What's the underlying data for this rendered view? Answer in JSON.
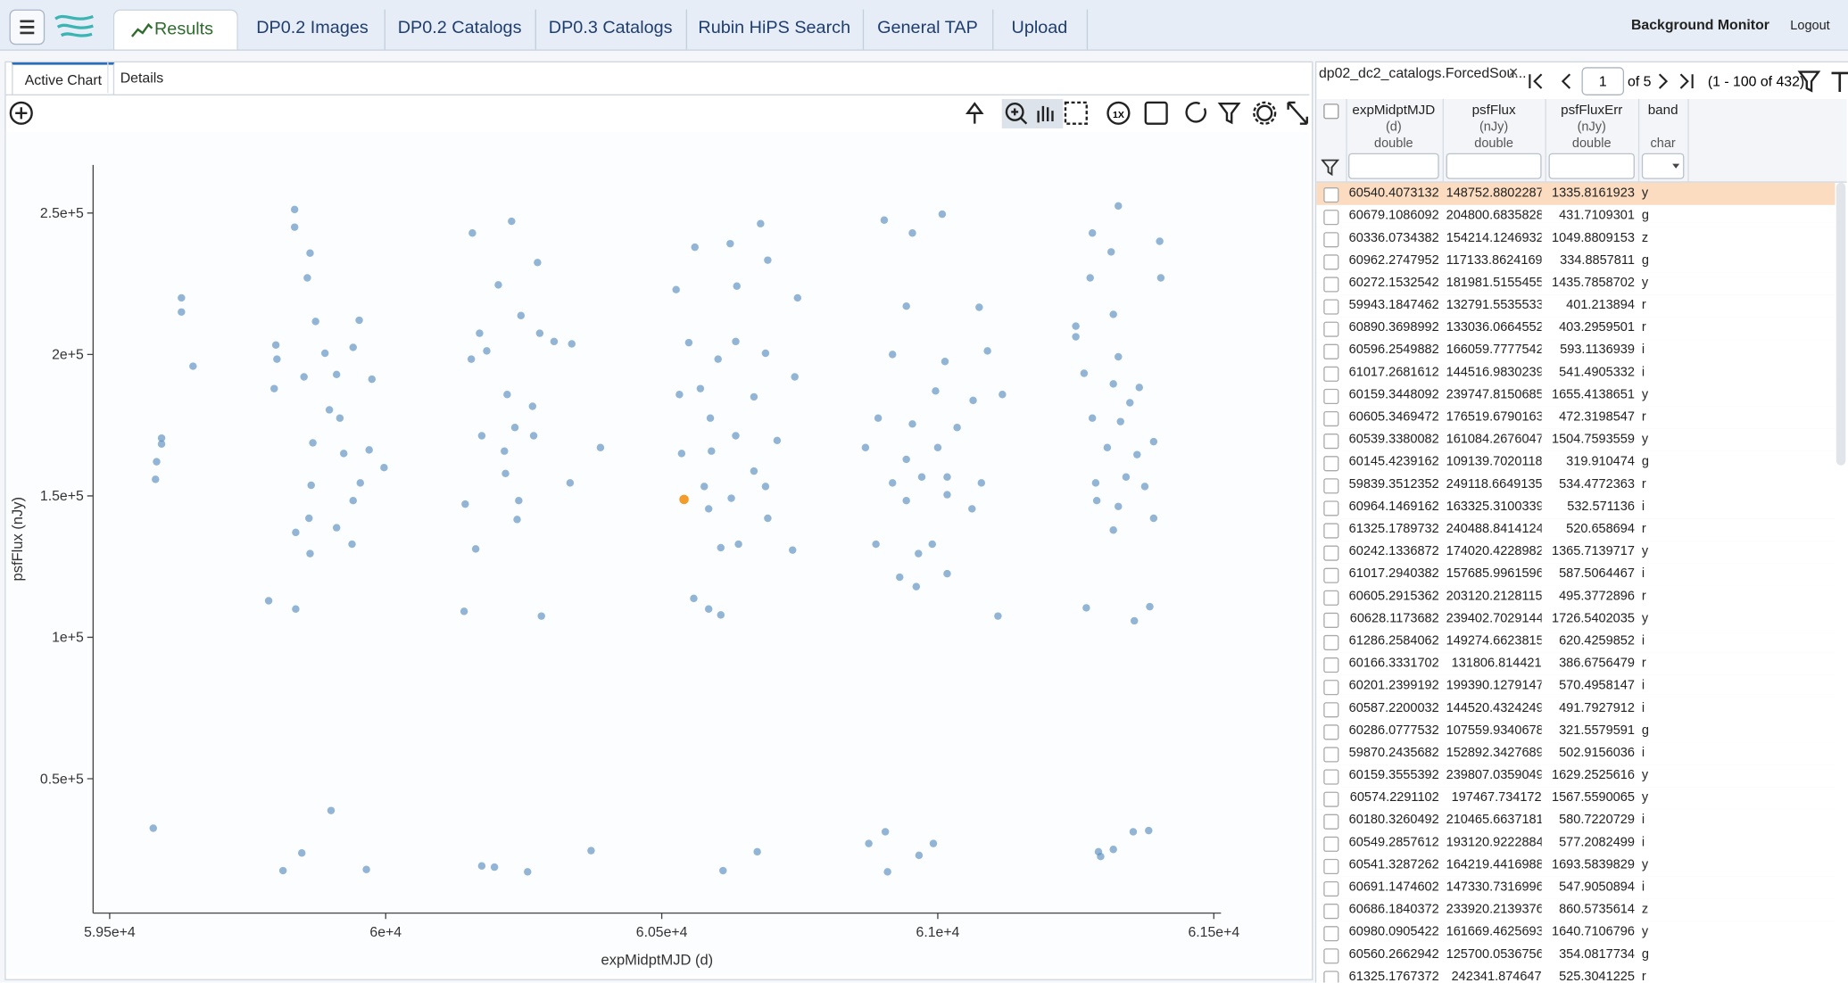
{
  "nav": {
    "tabs": [
      "Results",
      "DP0.2 Images",
      "DP0.2 Catalogs",
      "DP0.3 Catalogs",
      "Rubin HiPS Search",
      "General TAP",
      "Upload"
    ],
    "right": [
      "Background Monitor",
      "Logout"
    ]
  },
  "chart_panel": {
    "tabs": [
      "Active Chart",
      "Details"
    ],
    "zoom_reset": "1X"
  },
  "chart_data": {
    "type": "scatter",
    "x_label": "expMidptMJD (d)",
    "y_label": "psfFlux (nJy)",
    "color": "#5b8fbf",
    "grid": false,
    "xlim": [
      59470,
      61513
    ],
    "ylim": [
      2500,
      267000
    ],
    "xticks": [
      {
        "value": 59500,
        "label": "5.95e+4"
      },
      {
        "value": 60000,
        "label": "6e+4"
      },
      {
        "value": 60500,
        "label": "6.05e+4"
      },
      {
        "value": 61000,
        "label": "6.1e+4"
      },
      {
        "value": 61500,
        "label": "6.15e+4"
      }
    ],
    "yticks": [
      {
        "value": 50000,
        "label": "0.5e+5"
      },
      {
        "value": 100000,
        "label": "1e+5"
      },
      {
        "value": 150000,
        "label": "1.5e+5"
      },
      {
        "value": 200000,
        "label": "2e+5"
      },
      {
        "value": 250000,
        "label": "2.5e+5"
      }
    ],
    "x": [
      59583,
      59585,
      59594,
      59594,
      59630,
      59630,
      59651,
      59579,
      59835,
      59835,
      59863,
      59858,
      59801,
      59803,
      59798,
      59852,
      59873,
      59890,
      59911,
      59898,
      59868,
      59917,
      59924,
      59952,
      59941,
      59975,
      59970,
      59997,
      59954,
      59865,
      59861,
      59837,
      59863,
      59911,
      59939,
      59941,
      59788,
      59837,
      59901,
      59848,
      59814,
      59965,
      60157,
      60228,
      60204,
      60170,
      60183,
      60155,
      60245,
      60275,
      60279,
      60305,
      60337,
      60220,
      60266,
      60234,
      60174,
      60215,
      60268,
      60217,
      60241,
      60334,
      60389,
      60144,
      60238,
      60163,
      60142,
      60282,
      60197,
      60257,
      60174,
      60372,
      60560,
      60624,
      60679,
      60526,
      60636,
      60692,
      60746,
      60549,
      60602,
      60634,
      60688,
      60570,
      60667,
      60741,
      60532,
      60588,
      60634,
      60709,
      60536,
      60590,
      60667,
      60577,
      60626,
      60688,
      60585,
      60692,
      60607,
      60639,
      60737,
      60558,
      60585,
      60607,
      60611,
      60673,
      60903,
      61008,
      60954,
      60943,
      61075,
      60918,
      61013,
      61090,
      60996,
      61064,
      61117,
      60892,
      60954,
      61035,
      60869,
      60943,
      61000,
      60918,
      60971,
      61017,
      61079,
      60943,
      61017,
      61062,
      60888,
      60965,
      60990,
      60931,
      61017,
      60961,
      61109,
      60875,
      60905,
      60992,
      60966,
      60909,
      61280,
      61327,
      61314,
      61276,
      61250,
      61250,
      61318,
      61327,
      61402,
      61404,
      61265,
      61365,
      61318,
      61348,
      61280,
      61331,
      61391,
      61307,
      61361,
      61286,
      61341,
      61375,
      61327,
      61288,
      61391,
      61318,
      61269,
      61356,
      61384,
      61291,
      61318,
      61354,
      61382,
      61295
    ],
    "values": [
      155833,
      162083,
      168333,
      170417,
      220000,
      215000,
      195833,
      32500,
      251250,
      245000,
      235833,
      227083,
      203333,
      198333,
      187917,
      192083,
      211667,
      200417,
      192917,
      180417,
      168750,
      177500,
      165000,
      212083,
      202500,
      191250,
      166250,
      160000,
      154583,
      153750,
      142083,
      137083,
      129583,
      138750,
      132917,
      148333,
      112917,
      110000,
      38750,
      23750,
      17500,
      17917,
      242917,
      247083,
      224583,
      207500,
      201250,
      198333,
      213750,
      232500,
      207500,
      204583,
      203750,
      185833,
      181667,
      174167,
      171250,
      165833,
      171250,
      157917,
      148333,
      154583,
      167083,
      147083,
      141667,
      131250,
      109167,
      107500,
      18750,
      17083,
      19167,
      24583,
      237917,
      239167,
      246250,
      222917,
      224167,
      233333,
      220000,
      204167,
      198333,
      204583,
      200417,
      187917,
      185000,
      192083,
      185833,
      177500,
      171250,
      169583,
      165000,
      165833,
      158750,
      153333,
      149167,
      153333,
      145417,
      142083,
      131667,
      132917,
      130833,
      113750,
      110000,
      107917,
      17500,
      24167,
      247500,
      249583,
      242917,
      217083,
      216667,
      200000,
      197500,
      201250,
      187083,
      183750,
      185833,
      177500,
      175417,
      174167,
      167083,
      162917,
      167083,
      154583,
      156667,
      156667,
      154583,
      148333,
      150417,
      145417,
      132917,
      129583,
      132917,
      121250,
      122500,
      117917,
      107500,
      27083,
      31250,
      27083,
      22917,
      17083,
      242917,
      252500,
      236250,
      227083,
      210000,
      206250,
      214167,
      199167,
      240000,
      227083,
      193333,
      188333,
      189583,
      182917,
      177500,
      176250,
      169167,
      167083,
      164583,
      154583,
      156667,
      153333,
      146250,
      148333,
      142083,
      137917,
      110417,
      105833,
      110833,
      24167,
      25000,
      31250,
      31667,
      22500
    ],
    "selected": {
      "x": 60540.4073132,
      "y": 148752.8802287,
      "color": "#f39c29"
    }
  },
  "table": {
    "title": "dp02_dc2_catalogs.ForcedSou...",
    "close": "×",
    "page": "1",
    "page_of": "of 5",
    "range": "(1 - 100 of 432)",
    "columns": [
      {
        "name": "expMidptMJD",
        "unit": "(d)",
        "type": "double"
      },
      {
        "name": "psfFlux",
        "unit": "(nJy)",
        "type": "double"
      },
      {
        "name": "psfFluxErr",
        "unit": "(nJy)",
        "type": "double"
      },
      {
        "name": "band",
        "type": "char"
      }
    ],
    "rows": [
      [
        "60540.4073132",
        "148752.8802287",
        "1335.8161923",
        "y"
      ],
      [
        "60679.1086092",
        "204800.6835828",
        "431.7109301",
        "g"
      ],
      [
        "60336.0734382",
        "154214.1246932",
        "1049.8809153",
        "z"
      ],
      [
        "60962.2747952",
        "117133.8624169",
        "334.8857811",
        "g"
      ],
      [
        "60272.1532542",
        "181981.5155455",
        "1435.7858702",
        "y"
      ],
      [
        "59943.1847462",
        "132791.5535533",
        "401.213894",
        "r"
      ],
      [
        "60890.3698992",
        "133036.0664552",
        "403.2959501",
        "r"
      ],
      [
        "60596.2549882",
        "166059.7777542",
        "593.1136939",
        "i"
      ],
      [
        "61017.2681612",
        "144516.9830239",
        "541.4905332",
        "i"
      ],
      [
        "60159.3448092",
        "239747.8150685",
        "1655.4138651",
        "y"
      ],
      [
        "60605.3469472",
        "176519.6790163",
        "472.3198547",
        "r"
      ],
      [
        "60539.3380082",
        "161084.2676047",
        "1504.7593559",
        "y"
      ],
      [
        "60145.4239162",
        "109139.7020118",
        "319.910474",
        "g"
      ],
      [
        "59839.3512352",
        "249118.6649135",
        "534.4772363",
        "r"
      ],
      [
        "60964.1469162",
        "163325.3100339",
        "532.571136",
        "i"
      ],
      [
        "61325.1789732",
        "240488.8414124",
        "520.658694",
        "r"
      ],
      [
        "60242.1336872",
        "174020.4228982",
        "1365.7139717",
        "y"
      ],
      [
        "61017.2940382",
        "157685.9961596",
        "587.5064467",
        "i"
      ],
      [
        "60605.2915362",
        "203120.2128115",
        "495.3772896",
        "r"
      ],
      [
        "60628.1173682",
        "239402.7029144",
        "1726.5402035",
        "y"
      ],
      [
        "61286.2584062",
        "149274.6623815",
        "620.4259852",
        "i"
      ],
      [
        "60166.3331702",
        "131806.814421",
        "386.6756479",
        "r"
      ],
      [
        "60201.2399192",
        "199390.1279147",
        "570.4958147",
        "i"
      ],
      [
        "60587.2200032",
        "144520.4324249",
        "491.7927912",
        "i"
      ],
      [
        "60286.0777532",
        "107559.9340678",
        "321.5579591",
        "g"
      ],
      [
        "59870.2435682",
        "152892.3427689",
        "502.9156036",
        "i"
      ],
      [
        "60159.3555392",
        "239807.0359049",
        "1629.2525616",
        "y"
      ],
      [
        "60574.2291102",
        "197467.734172",
        "1567.5590065",
        "y"
      ],
      [
        "60180.3260492",
        "210465.6637181",
        "580.7220729",
        "i"
      ],
      [
        "60549.2857612",
        "193120.9222884",
        "577.2082499",
        "i"
      ],
      [
        "60541.3287262",
        "164219.4416988",
        "1693.5839829",
        "y"
      ],
      [
        "60691.1474602",
        "147330.7316996",
        "547.9050894",
        "i"
      ],
      [
        "60686.1840372",
        "233920.2139376",
        "860.5735614",
        "z"
      ],
      [
        "60980.0905422",
        "161669.4625693",
        "1640.7106796",
        "y"
      ],
      [
        "60560.2662942",
        "125700.0536756",
        "354.0817734",
        "g"
      ],
      [
        "61325.1767372",
        "242341.874647",
        "525.3041225",
        "r"
      ]
    ]
  }
}
